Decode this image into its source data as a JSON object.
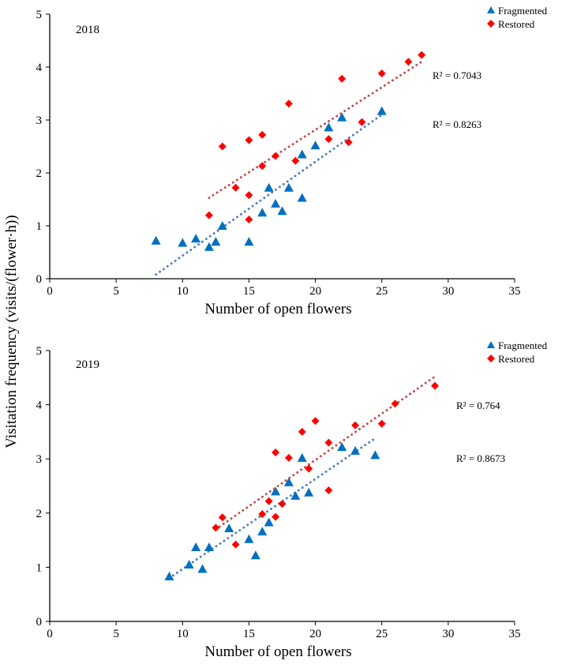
{
  "y_axis_label": "Visitation frequency (visits/(flower·h))",
  "colors": {
    "fragmented": "#0070C0",
    "restored": "#FF0000",
    "frag_trend": "#4F81BD",
    "rest_trend": "#C0504D"
  },
  "chart_data": [
    {
      "type": "scatter",
      "title": "2018",
      "xlabel": "Number of open flowers",
      "ylabel": "Visitation frequency (visits/(flower·h))",
      "xlim": [
        0,
        35
      ],
      "ylim": [
        0,
        5
      ],
      "xticks": [
        "0",
        "5",
        "10",
        "15",
        "20",
        "25",
        "30",
        "35"
      ],
      "yticks": [
        "0",
        "1",
        "2",
        "3",
        "4",
        "5"
      ],
      "legend_position": "top-right",
      "series": [
        {
          "name": "Fragmented",
          "marker": "triangle",
          "points": [
            [
              8,
              0.72
            ],
            [
              10,
              0.68
            ],
            [
              11,
              0.76
            ],
            [
              12,
              0.6
            ],
            [
              12.5,
              0.7
            ],
            [
              13,
              1.0
            ],
            [
              15,
              0.7
            ],
            [
              16,
              1.25
            ],
            [
              16.5,
              1.72
            ],
            [
              17,
              1.42
            ],
            [
              17.5,
              1.28
            ],
            [
              18,
              1.72
            ],
            [
              19,
              1.53
            ],
            [
              19,
              2.35
            ],
            [
              20,
              2.52
            ],
            [
              21,
              2.86
            ],
            [
              22,
              3.05
            ],
            [
              25,
              3.17
            ]
          ],
          "trend": [
            [
              8,
              0.08
            ],
            [
              25,
              3.1
            ]
          ],
          "r2": "R² = 0.8263"
        },
        {
          "name": "Restored",
          "marker": "diamond",
          "points": [
            [
              12,
              1.2
            ],
            [
              13,
              2.5
            ],
            [
              14,
              1.72
            ],
            [
              15,
              2.62
            ],
            [
              15,
              1.58
            ],
            [
              15,
              1.12
            ],
            [
              16,
              2.72
            ],
            [
              16,
              2.13
            ],
            [
              17,
              2.32
            ],
            [
              18,
              3.31
            ],
            [
              18.5,
              2.23
            ],
            [
              21,
              2.64
            ],
            [
              22,
              3.78
            ],
            [
              22.5,
              2.58
            ],
            [
              23.5,
              2.96
            ],
            [
              25,
              3.88
            ],
            [
              27,
              4.1
            ],
            [
              28,
              4.23
            ]
          ],
          "trend": [
            [
              12,
              1.53
            ],
            [
              28,
              4.1
            ]
          ],
          "r2": "R² = 0.7043"
        }
      ]
    },
    {
      "type": "scatter",
      "title": "2019",
      "xlabel": "Number of open flowers",
      "ylabel": "Visitation frequency (visits/(flower·h))",
      "xlim": [
        0,
        35
      ],
      "ylim": [
        0,
        5
      ],
      "xticks": [
        "0",
        "5",
        "10",
        "15",
        "20",
        "25",
        "30",
        "35"
      ],
      "yticks": [
        "0",
        "1",
        "2",
        "3",
        "4",
        "5"
      ],
      "legend_position": "top-right",
      "series": [
        {
          "name": "Fragmented",
          "marker": "triangle",
          "points": [
            [
              9,
              0.83
            ],
            [
              10.5,
              1.05
            ],
            [
              11,
              1.37
            ],
            [
              11.5,
              0.97
            ],
            [
              12,
              1.37
            ],
            [
              13.5,
              1.72
            ],
            [
              15,
              1.52
            ],
            [
              15.5,
              1.22
            ],
            [
              16,
              1.66
            ],
            [
              16.5,
              1.83
            ],
            [
              17,
              2.4
            ],
            [
              18,
              2.57
            ],
            [
              18.5,
              2.32
            ],
            [
              19,
              3.02
            ],
            [
              19.5,
              2.38
            ],
            [
              22,
              3.22
            ],
            [
              23,
              3.15
            ],
            [
              24.5,
              3.07
            ]
          ],
          "trend": [
            [
              9,
              0.8
            ],
            [
              24.5,
              3.38
            ]
          ],
          "r2": "R² = 0.8673"
        },
        {
          "name": "Restored",
          "marker": "diamond",
          "points": [
            [
              12.5,
              1.73
            ],
            [
              13,
              1.92
            ],
            [
              14,
              1.42
            ],
            [
              16,
              1.98
            ],
            [
              16.5,
              2.22
            ],
            [
              17,
              1.93
            ],
            [
              17,
              3.12
            ],
            [
              17.5,
              2.17
            ],
            [
              18,
              3.02
            ],
            [
              19,
              3.5
            ],
            [
              19.5,
              2.82
            ],
            [
              20,
              3.7
            ],
            [
              21,
              3.3
            ],
            [
              21,
              2.42
            ],
            [
              23,
              3.62
            ],
            [
              25,
              3.65
            ],
            [
              26,
              4.02
            ],
            [
              29,
              4.35
            ]
          ],
          "trend": [
            [
              12.5,
              1.7
            ],
            [
              29,
              4.52
            ]
          ],
          "r2": "R² = 0.764"
        }
      ]
    }
  ]
}
